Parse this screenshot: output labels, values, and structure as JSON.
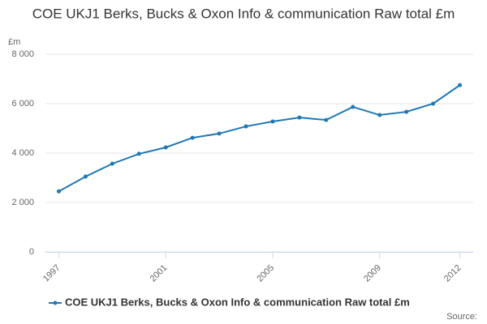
{
  "chart_data": {
    "type": "line",
    "title": "COE UKJ1 Berks, Bucks & Oxon Info & communication Raw total £m",
    "y_label": "£m",
    "source": "Source:",
    "x": [
      1997,
      1998,
      1999,
      2000,
      2001,
      2002,
      2003,
      2004,
      2005,
      2006,
      2007,
      2008,
      2009,
      2010,
      2011,
      2012
    ],
    "series": [
      {
        "name": "COE UKJ1 Berks, Bucks & Oxon Info & communication Raw total £m",
        "color": "#1f78b4",
        "values": [
          2450,
          3050,
          3570,
          3970,
          4230,
          4620,
          4790,
          5080,
          5280,
          5440,
          5340,
          5870,
          5540,
          5670,
          6000,
          6750
        ]
      }
    ],
    "xlim": [
      1996.5,
      2012.5
    ],
    "xticks": [
      1997,
      2001,
      2005,
      2009,
      2012
    ],
    "ylim": [
      0,
      8000
    ],
    "yticks": [
      0,
      {
        "value": 2000,
        "label": "2 000"
      },
      {
        "value": 4000,
        "label": "4 000"
      },
      {
        "value": 6000,
        "label": "6 000"
      },
      {
        "value": 8000,
        "label": "8 000"
      }
    ],
    "grid": true
  }
}
